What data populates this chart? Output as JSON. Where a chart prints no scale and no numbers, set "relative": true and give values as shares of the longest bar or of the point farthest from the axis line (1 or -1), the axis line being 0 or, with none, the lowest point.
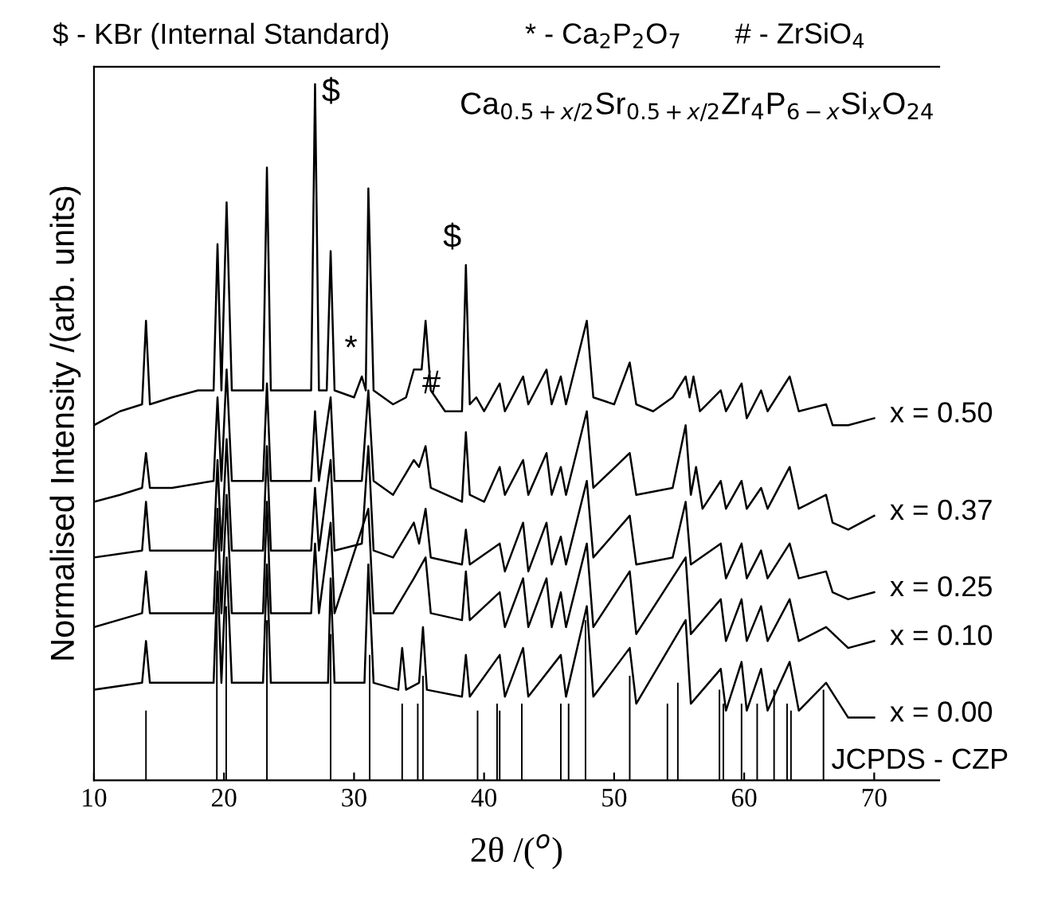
{
  "chart_data": {
    "type": "line",
    "relative": true,
    "title": "$ - KBr (Internal Standard)",
    "subtitle": "Ca$_{0.5+x/2}$Sr$_{0.5+x/2}$Zr$_{4}$P$_{6−x}$Si$_{x}$O$_{24}$",
    "xlabel": "2θ /($^{o}$)",
    "ylabel": "Normalised Intensity /(arb. units)",
    "xlim": [
      10,
      75
    ],
    "xticks": [
      10,
      20,
      30,
      40,
      50,
      60,
      70
    ],
    "tick_labels": "x",
    "grid": false,
    "legend": false,
    "annotations": [
      "* - Ca$_{2}$P$_{2}$O$_{7}$",
      "# - ZrSiO$_{4}$",
      {
        "text": "$",
        "x": 27,
        "y": 1.0
      },
      {
        "text": "$",
        "x": 38.6,
        "y": 0.74
      },
      {
        "text": "*",
        "x": 30.6,
        "y": 0.58
      },
      {
        "text": "#",
        "x": 37,
        "y": 0.53
      }
    ],
    "series": [
      {
        "name": "x = 0.50",
        "color": "#000000",
        "x": [
          10,
          12,
          13.7,
          14,
          14.3,
          16,
          18,
          19.2,
          19.5,
          19.8,
          20.2,
          20.6,
          22,
          23,
          23.3,
          23.6,
          25,
          26.7,
          27,
          27.3,
          27.9,
          28.2,
          28.5,
          30,
          30.6,
          30.9,
          31.1,
          31.5,
          33,
          34,
          34.6,
          35.2,
          35.5,
          35.9,
          37,
          38.3,
          38.6,
          38.9,
          39.4,
          40,
          41.2,
          41.6,
          43,
          43.4,
          44.8,
          45.2,
          45.9,
          46.3,
          47.9,
          48.4,
          50,
          51.2,
          51.7,
          53,
          54.5,
          55.5,
          55.8,
          56.1,
          56.6,
          58.2,
          58.6,
          59.8,
          60.2,
          61.3,
          61.8,
          63.5,
          64.2,
          66.3,
          66.8,
          68,
          70
        ],
        "values": [
          0.51,
          0.53,
          0.54,
          0.66,
          0.54,
          0.55,
          0.56,
          0.56,
          0.77,
          0.56,
          0.83,
          0.56,
          0.56,
          0.56,
          0.88,
          0.56,
          0.56,
          0.56,
          1.0,
          0.56,
          0.56,
          0.76,
          0.56,
          0.55,
          0.58,
          0.56,
          0.85,
          0.56,
          0.54,
          0.55,
          0.59,
          0.59,
          0.66,
          0.56,
          0.53,
          0.53,
          0.74,
          0.54,
          0.55,
          0.53,
          0.57,
          0.53,
          0.58,
          0.54,
          0.59,
          0.54,
          0.58,
          0.54,
          0.66,
          0.55,
          0.54,
          0.6,
          0.54,
          0.53,
          0.55,
          0.58,
          0.55,
          0.58,
          0.53,
          0.56,
          0.53,
          0.57,
          0.52,
          0.56,
          0.53,
          0.58,
          0.53,
          0.54,
          0.51,
          0.51,
          0.52
        ]
      },
      {
        "name": "x = 0.37",
        "color": "#000000",
        "x": [
          10,
          12,
          13.7,
          14,
          14.3,
          16,
          19.2,
          19.5,
          19.8,
          20.2,
          20.6,
          23,
          23.3,
          23.6,
          26.7,
          27,
          27.3,
          28.2,
          28.5,
          30.6,
          31.1,
          31.5,
          33,
          34.6,
          35,
          35.5,
          35.9,
          38.3,
          38.6,
          38.9,
          40,
          41.2,
          41.6,
          43,
          43.4,
          44.8,
          45.2,
          45.9,
          46.3,
          47.9,
          48.4,
          51.2,
          51.7,
          54.5,
          55.5,
          55.9,
          56.3,
          56.8,
          58.2,
          58.6,
          59.8,
          60.2,
          61.3,
          61.8,
          63.5,
          64.2,
          66.3,
          66.8,
          68,
          70
        ],
        "values": [
          0.4,
          0.41,
          0.42,
          0.47,
          0.42,
          0.42,
          0.43,
          0.55,
          0.43,
          0.59,
          0.43,
          0.43,
          0.57,
          0.43,
          0.43,
          0.53,
          0.43,
          0.55,
          0.43,
          0.43,
          0.56,
          0.43,
          0.41,
          0.46,
          0.45,
          0.48,
          0.42,
          0.4,
          0.5,
          0.41,
          0.4,
          0.45,
          0.41,
          0.46,
          0.41,
          0.47,
          0.41,
          0.45,
          0.41,
          0.53,
          0.42,
          0.47,
          0.41,
          0.42,
          0.51,
          0.41,
          0.45,
          0.39,
          0.43,
          0.39,
          0.43,
          0.39,
          0.42,
          0.39,
          0.45,
          0.39,
          0.41,
          0.37,
          0.36,
          0.38
        ]
      },
      {
        "name": "x = 0.25",
        "color": "#000000",
        "x": [
          10,
          13.7,
          14,
          14.3,
          16,
          19.2,
          19.5,
          19.8,
          20.2,
          20.6,
          23,
          23.3,
          23.6,
          26.7,
          27,
          27.3,
          28.2,
          28.5,
          30.6,
          31.1,
          31.5,
          33,
          34.6,
          35,
          35.5,
          35.9,
          38.3,
          38.6,
          38.9,
          41.2,
          41.6,
          43,
          43.4,
          44.8,
          45.2,
          45.9,
          46.3,
          47.9,
          48.4,
          51.2,
          51.7,
          54.5,
          55.5,
          55.9,
          58.2,
          58.6,
          59.8,
          60.2,
          61.3,
          61.8,
          63.5,
          64.2,
          66.3,
          66.8,
          68,
          70
        ],
        "values": [
          0.32,
          0.33,
          0.4,
          0.33,
          0.33,
          0.33,
          0.46,
          0.33,
          0.49,
          0.33,
          0.33,
          0.48,
          0.33,
          0.33,
          0.42,
          0.33,
          0.46,
          0.33,
          0.34,
          0.48,
          0.33,
          0.32,
          0.37,
          0.34,
          0.39,
          0.32,
          0.31,
          0.36,
          0.31,
          0.34,
          0.3,
          0.37,
          0.3,
          0.37,
          0.31,
          0.35,
          0.31,
          0.43,
          0.32,
          0.38,
          0.31,
          0.32,
          0.4,
          0.31,
          0.34,
          0.29,
          0.34,
          0.29,
          0.33,
          0.29,
          0.34,
          0.29,
          0.3,
          0.27,
          0.26,
          0.27
        ]
      },
      {
        "name": "x = 0.10",
        "color": "#000000",
        "x": [
          10,
          13.7,
          14,
          14.3,
          16,
          19.2,
          19.5,
          19.8,
          20.2,
          20.6,
          23,
          23.3,
          23.6,
          26.7,
          27,
          27.3,
          28.2,
          28.5,
          31.1,
          31.5,
          33,
          34.6,
          35.5,
          35.9,
          38.3,
          38.6,
          38.9,
          41.2,
          41.6,
          43,
          43.4,
          44.8,
          45.2,
          45.9,
          46.3,
          47.9,
          48.4,
          51.2,
          51.7,
          55.5,
          55.9,
          58.2,
          58.6,
          59.8,
          60.2,
          61.3,
          61.8,
          63.5,
          64.2,
          66.3,
          68,
          70
        ],
        "values": [
          0.22,
          0.24,
          0.3,
          0.24,
          0.24,
          0.24,
          0.39,
          0.24,
          0.41,
          0.24,
          0.24,
          0.4,
          0.24,
          0.24,
          0.34,
          0.24,
          0.37,
          0.24,
          0.39,
          0.24,
          0.24,
          0.29,
          0.32,
          0.24,
          0.23,
          0.3,
          0.23,
          0.27,
          0.22,
          0.29,
          0.22,
          0.29,
          0.22,
          0.27,
          0.22,
          0.34,
          0.22,
          0.3,
          0.21,
          0.32,
          0.21,
          0.26,
          0.2,
          0.26,
          0.2,
          0.25,
          0.2,
          0.26,
          0.2,
          0.22,
          0.19,
          0.2
        ]
      },
      {
        "name": "x = 0.00",
        "color": "#000000",
        "x": [
          10,
          13.7,
          14,
          14.3,
          16,
          19.2,
          19.5,
          19.8,
          20.2,
          20.6,
          23,
          23.3,
          23.6,
          28,
          28.2,
          28.5,
          30.8,
          31.1,
          31.5,
          33.4,
          33.7,
          34,
          35,
          35.3,
          35.6,
          38.3,
          38.6,
          38.9,
          41.2,
          41.6,
          43,
          43.4,
          45.9,
          46.3,
          47.9,
          48.4,
          51.2,
          51.7,
          55.5,
          55.9,
          58.2,
          58.6,
          59.8,
          60.2,
          61.3,
          61.8,
          63.5,
          64.2,
          66.3,
          68,
          70
        ],
        "values": [
          0.13,
          0.14,
          0.2,
          0.14,
          0.14,
          0.14,
          0.3,
          0.14,
          0.32,
          0.14,
          0.14,
          0.31,
          0.14,
          0.14,
          0.29,
          0.14,
          0.14,
          0.31,
          0.14,
          0.13,
          0.19,
          0.13,
          0.14,
          0.22,
          0.13,
          0.12,
          0.18,
          0.12,
          0.18,
          0.12,
          0.19,
          0.12,
          0.18,
          0.12,
          0.25,
          0.12,
          0.19,
          0.11,
          0.23,
          0.11,
          0.16,
          0.1,
          0.17,
          0.1,
          0.16,
          0.1,
          0.17,
          0.1,
          0.14,
          0.09,
          0.09
        ]
      },
      {
        "name": "JCPDS - CZP",
        "type": "bar",
        "color": "#000000",
        "x": [
          14,
          19.45,
          20.17,
          23.3,
          28.2,
          31.2,
          33.7,
          34.9,
          35.3,
          39.5,
          41.0,
          41.2,
          42.9,
          45.9,
          46.5,
          47.8,
          51.2,
          54.1,
          54.9,
          58.1,
          58.4,
          59.8,
          61.0,
          62.3,
          63.3,
          63.6,
          66.1
        ],
        "values": [
          0.1,
          0.25,
          0.25,
          0.23,
          0.21,
          0.18,
          0.11,
          0.11,
          0.15,
          0.1,
          0.11,
          0.1,
          0.11,
          0.11,
          0.11,
          0.23,
          0.15,
          0.11,
          0.14,
          0.13,
          0.11,
          0.11,
          0.11,
          0.13,
          0.11,
          0.1,
          0.13
        ]
      }
    ]
  }
}
